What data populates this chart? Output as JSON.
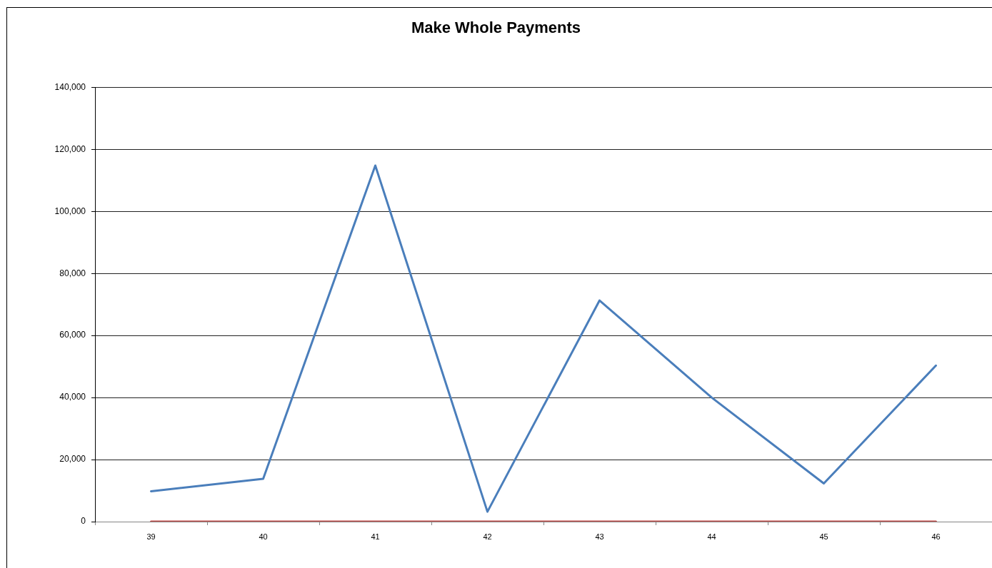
{
  "chart_data": {
    "type": "line",
    "title": "Make Whole Payments",
    "categories": [
      "39",
      "40",
      "41",
      "42",
      "43",
      "44",
      "45",
      "46"
    ],
    "series": [
      {
        "color": "#4a7ebb",
        "values": [
          9800,
          13800,
          114800,
          3200,
          71300,
          40000,
          12300,
          50300
        ]
      },
      {
        "color": "#be4b48",
        "values": [
          0,
          0,
          0,
          0,
          0,
          0,
          0,
          0
        ]
      }
    ],
    "ylim": [
      0,
      140000
    ],
    "yticks": [
      0,
      {
        "value": 20000,
        "label": "20,000"
      },
      {
        "value": 40000,
        "label": "40,000"
      },
      {
        "value": 60000,
        "label": "60,000"
      },
      {
        "value": 80000,
        "label": "80,000"
      },
      {
        "value": 100000,
        "label": "100,000"
      },
      {
        "value": 120000,
        "label": "120,000"
      },
      {
        "value": 140000,
        "label": "140,000"
      }
    ],
    "grid": "y",
    "legend": false,
    "marker": "none",
    "line_style": "solid"
  }
}
